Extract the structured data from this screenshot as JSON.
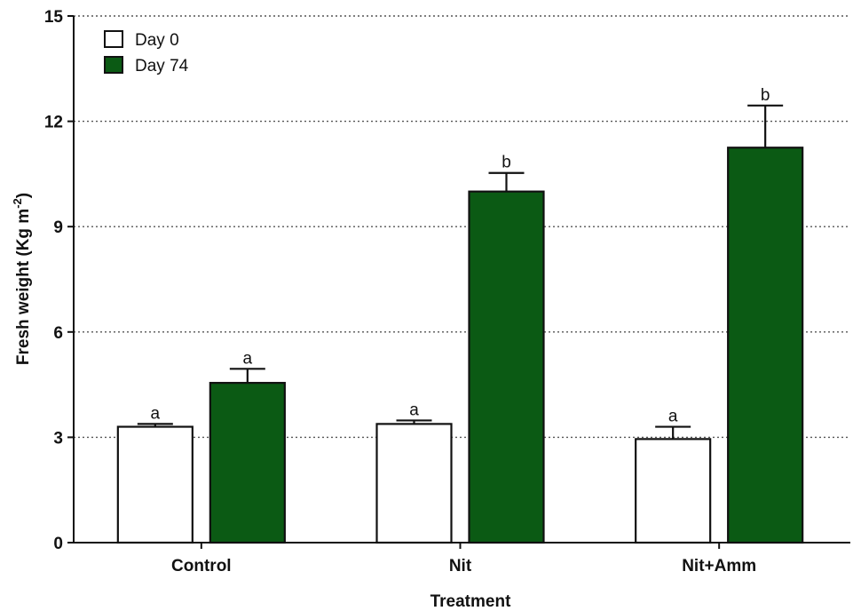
{
  "chart_data": {
    "type": "bar",
    "categories": [
      "Control",
      "Nit",
      "Nit+Amm"
    ],
    "series": [
      {
        "name": "Day 0",
        "color": "#ffffff",
        "values": [
          3.3,
          3.38,
          2.95
        ],
        "errors": [
          0.08,
          0.1,
          0.35
        ],
        "sig_labels": [
          "a",
          "a",
          "a"
        ]
      },
      {
        "name": "Day 74",
        "color": "#0b5a14",
        "values": [
          4.55,
          10.0,
          11.25
        ],
        "errors": [
          0.4,
          0.53,
          1.2
        ],
        "sig_labels": [
          "a",
          "b",
          "b"
        ]
      }
    ],
    "xlabel": "Treatment",
    "ylabel_main": "Fresh weight (Kg m",
    "ylabel_sup": "-2",
    "ylabel_end": ")",
    "ylim": [
      0,
      15
    ],
    "yticks": [
      0,
      3,
      6,
      9,
      12,
      15
    ],
    "grid": true,
    "legend_position": "top-left"
  }
}
